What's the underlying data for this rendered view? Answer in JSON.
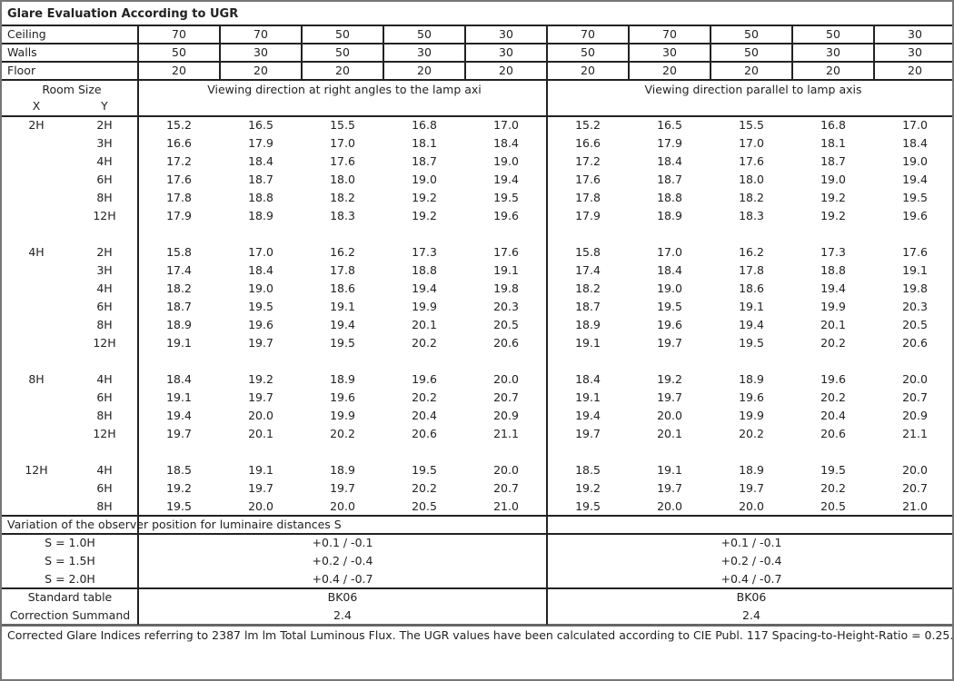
{
  "title": "Glare Evaluation According to UGR",
  "reflectances": [
    {
      "label": "Ceiling",
      "values": [
        "70",
        "70",
        "50",
        "50",
        "30",
        "70",
        "70",
        "50",
        "50",
        "30"
      ]
    },
    {
      "label": "Walls",
      "values": [
        "50",
        "30",
        "50",
        "30",
        "30",
        "50",
        "30",
        "50",
        "30",
        "30"
      ]
    },
    {
      "label": "Floor",
      "values": [
        "20",
        "20",
        "20",
        "20",
        "20",
        "20",
        "20",
        "20",
        "20",
        "20"
      ]
    }
  ],
  "header": {
    "room_size": "Room Size",
    "x": "X",
    "y": "Y",
    "perpendicular": "Viewing direction at right angles to the lamp axi",
    "parallel": "Viewing direction parallel to lamp axis"
  },
  "groups": [
    {
      "x": "2H",
      "rows": [
        {
          "y": "2H",
          "v": [
            "15.2",
            "16.5",
            "15.5",
            "16.8",
            "17.0",
            "15.2",
            "16.5",
            "15.5",
            "16.8",
            "17.0"
          ]
        },
        {
          "y": "3H",
          "v": [
            "16.6",
            "17.9",
            "17.0",
            "18.1",
            "18.4",
            "16.6",
            "17.9",
            "17.0",
            "18.1",
            "18.4"
          ]
        },
        {
          "y": "4H",
          "v": [
            "17.2",
            "18.4",
            "17.6",
            "18.7",
            "19.0",
            "17.2",
            "18.4",
            "17.6",
            "18.7",
            "19.0"
          ]
        },
        {
          "y": "6H",
          "v": [
            "17.6",
            "18.7",
            "18.0",
            "19.0",
            "19.4",
            "17.6",
            "18.7",
            "18.0",
            "19.0",
            "19.4"
          ]
        },
        {
          "y": "8H",
          "v": [
            "17.8",
            "18.8",
            "18.2",
            "19.2",
            "19.5",
            "17.8",
            "18.8",
            "18.2",
            "19.2",
            "19.5"
          ]
        },
        {
          "y": "12H",
          "v": [
            "17.9",
            "18.9",
            "18.3",
            "19.2",
            "19.6",
            "17.9",
            "18.9",
            "18.3",
            "19.2",
            "19.6"
          ]
        }
      ]
    },
    {
      "x": "4H",
      "rows": [
        {
          "y": "2H",
          "v": [
            "15.8",
            "17.0",
            "16.2",
            "17.3",
            "17.6",
            "15.8",
            "17.0",
            "16.2",
            "17.3",
            "17.6"
          ]
        },
        {
          "y": "3H",
          "v": [
            "17.4",
            "18.4",
            "17.8",
            "18.8",
            "19.1",
            "17.4",
            "18.4",
            "17.8",
            "18.8",
            "19.1"
          ]
        },
        {
          "y": "4H",
          "v": [
            "18.2",
            "19.0",
            "18.6",
            "19.4",
            "19.8",
            "18.2",
            "19.0",
            "18.6",
            "19.4",
            "19.8"
          ]
        },
        {
          "y": "6H",
          "v": [
            "18.7",
            "19.5",
            "19.1",
            "19.9",
            "20.3",
            "18.7",
            "19.5",
            "19.1",
            "19.9",
            "20.3"
          ]
        },
        {
          "y": "8H",
          "v": [
            "18.9",
            "19.6",
            "19.4",
            "20.1",
            "20.5",
            "18.9",
            "19.6",
            "19.4",
            "20.1",
            "20.5"
          ]
        },
        {
          "y": "12H",
          "v": [
            "19.1",
            "19.7",
            "19.5",
            "20.2",
            "20.6",
            "19.1",
            "19.7",
            "19.5",
            "20.2",
            "20.6"
          ]
        }
      ]
    },
    {
      "x": "8H",
      "rows": [
        {
          "y": "4H",
          "v": [
            "18.4",
            "19.2",
            "18.9",
            "19.6",
            "20.0",
            "18.4",
            "19.2",
            "18.9",
            "19.6",
            "20.0"
          ]
        },
        {
          "y": "6H",
          "v": [
            "19.1",
            "19.7",
            "19.6",
            "20.2",
            "20.7",
            "19.1",
            "19.7",
            "19.6",
            "20.2",
            "20.7"
          ]
        },
        {
          "y": "8H",
          "v": [
            "19.4",
            "20.0",
            "19.9",
            "20.4",
            "20.9",
            "19.4",
            "20.0",
            "19.9",
            "20.4",
            "20.9"
          ]
        },
        {
          "y": "12H",
          "v": [
            "19.7",
            "20.1",
            "20.2",
            "20.6",
            "21.1",
            "19.7",
            "20.1",
            "20.2",
            "20.6",
            "21.1"
          ]
        }
      ]
    },
    {
      "x": "12H",
      "rows": [
        {
          "y": "4H",
          "v": [
            "18.5",
            "19.1",
            "18.9",
            "19.5",
            "20.0",
            "18.5",
            "19.1",
            "18.9",
            "19.5",
            "20.0"
          ]
        },
        {
          "y": "6H",
          "v": [
            "19.2",
            "19.7",
            "19.7",
            "20.2",
            "20.7",
            "19.2",
            "19.7",
            "19.7",
            "20.2",
            "20.7"
          ]
        },
        {
          "y": "8H",
          "v": [
            "19.5",
            "20.0",
            "20.0",
            "20.5",
            "21.0",
            "19.5",
            "20.0",
            "20.0",
            "20.5",
            "21.0"
          ]
        }
      ]
    }
  ],
  "variation": {
    "title": "Variation of the observer position for luminaire distances S",
    "rows": [
      {
        "label": "S = 1.0H",
        "perpendicular": "+0.1 / -0.1",
        "parallel": "+0.1 / -0.1"
      },
      {
        "label": "S = 1.5H",
        "perpendicular": "+0.2 / -0.4",
        "parallel": "+0.2 / -0.4"
      },
      {
        "label": "S = 2.0H",
        "perpendicular": "+0.4 / -0.7",
        "parallel": "+0.4 / -0.7"
      }
    ]
  },
  "standard": [
    {
      "label": "Standard table",
      "perpendicular": "BK06",
      "parallel": "BK06"
    },
    {
      "label": "Correction Summand",
      "perpendicular": "2.4",
      "parallel": "2.4"
    }
  ],
  "footer": "Corrected Glare Indices referring to 2387 lm lm Total Luminous Flux. The UGR values have been calculated according to CIE Publ. 117    Spacing-to-Height-Ratio = 0.25."
}
